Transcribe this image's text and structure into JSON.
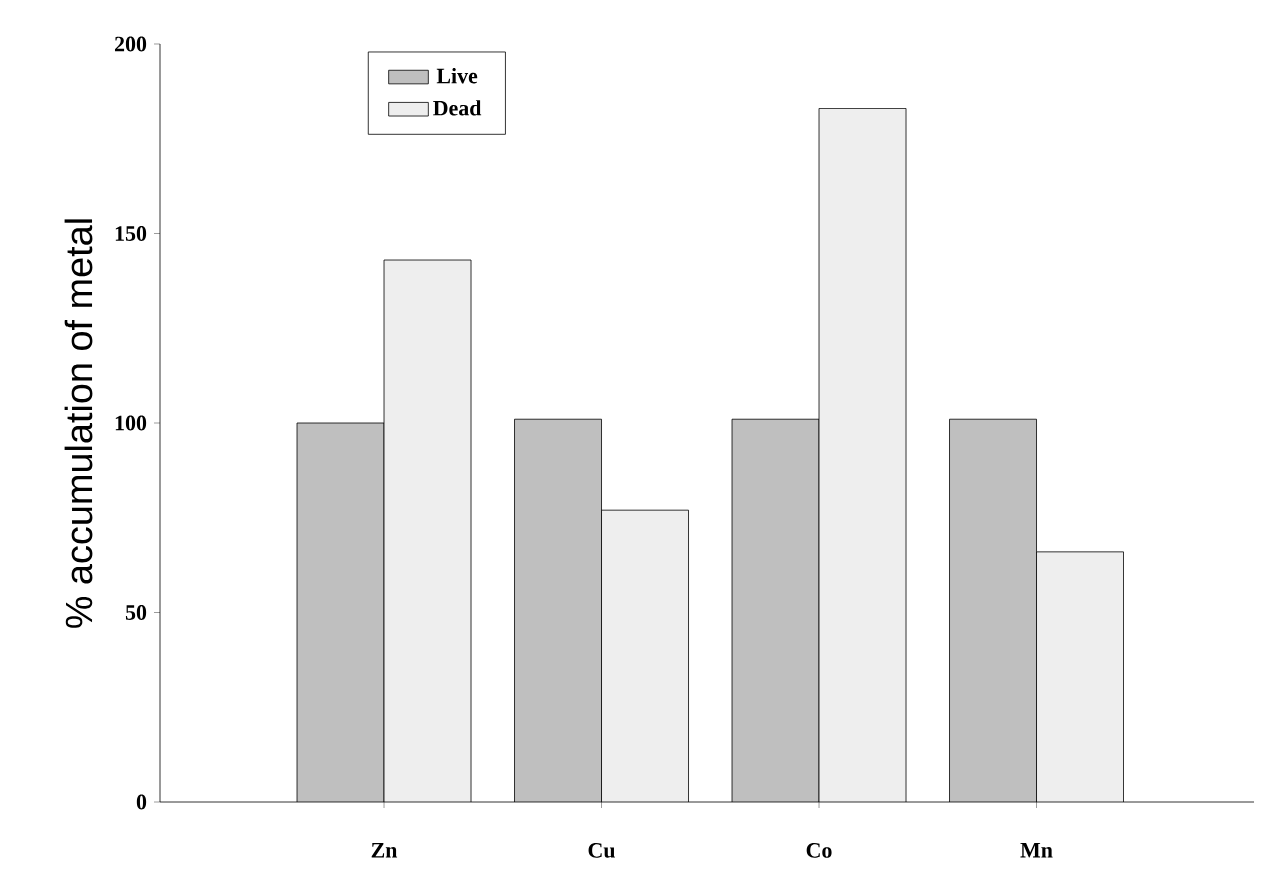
{
  "chart_data": {
    "type": "bar",
    "ylabel": "% accumulation of metal",
    "categories": [
      "Zn",
      "Cu",
      "Co",
      "Mn"
    ],
    "series": [
      {
        "name": "Live",
        "color": "#bfbfbf",
        "values": [
          100,
          101,
          101,
          101
        ]
      },
      {
        "name": "Dead",
        "color": "#eeeeee",
        "values": [
          143,
          77,
          183,
          66
        ]
      }
    ],
    "ylim": [
      0,
      200
    ],
    "yticks": [
      0,
      50,
      100,
      150,
      200
    ],
    "legend": "top left",
    "grid": false
  }
}
